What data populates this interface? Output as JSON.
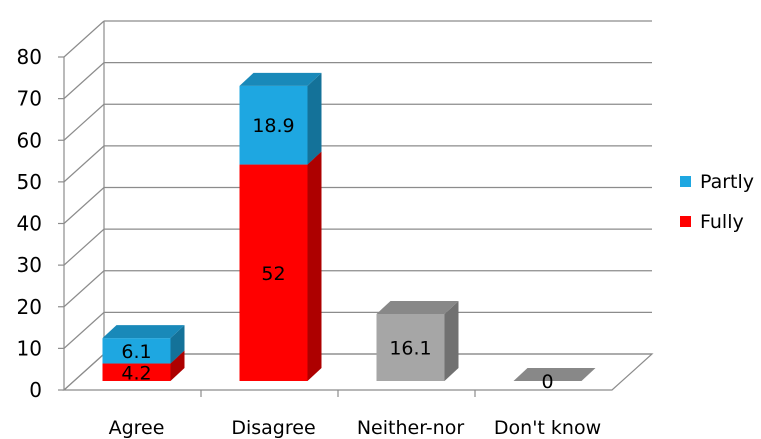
{
  "chart_data": {
    "type": "bar",
    "stacked": true,
    "three_d": true,
    "categories": [
      "Agree",
      "Disagree",
      "Neither-nor",
      "Don't know"
    ],
    "series": [
      {
        "name": "Fully",
        "values": [
          4.2,
          52,
          null,
          null
        ],
        "color": "#ff0000"
      },
      {
        "name": "Partly",
        "values": [
          6.1,
          18.9,
          null,
          null
        ],
        "color": "#1ea7e1"
      },
      {
        "name": "",
        "values": [
          null,
          null,
          16.1,
          0
        ],
        "color": "#a6a6a6"
      }
    ],
    "data_labels": [
      [
        "4.2",
        "52",
        "",
        ""
      ],
      [
        "6.1",
        "18.9",
        "",
        ""
      ],
      [
        "",
        "",
        "16.1",
        "0"
      ]
    ],
    "y_ticks": [
      "0",
      "10",
      "20",
      "30",
      "40",
      "50",
      "60",
      "70",
      "80"
    ],
    "ylim": [
      0,
      80
    ],
    "grid": true,
    "legend": {
      "position": "right",
      "items": [
        {
          "label": "Partly",
          "color": "#1ea7e1"
        },
        {
          "label": "Fully",
          "color": "#ff0000"
        }
      ]
    }
  }
}
